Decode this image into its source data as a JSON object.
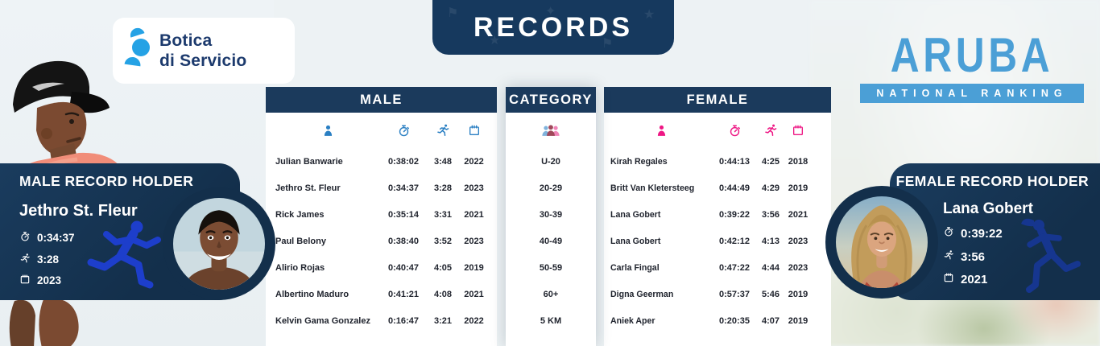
{
  "banner": {
    "title": "RECORDS"
  },
  "sponsor": {
    "line1": "Botica",
    "line2": "di Servicio"
  },
  "ranking": {
    "title": "ARUBA",
    "subtitle": "NATIONAL RANKING"
  },
  "colors": {
    "navy": "#16395e",
    "header_navy": "#1b3a5c",
    "card_navy": "#132f4b",
    "male_blue": "#2a7fc3",
    "female_pink": "#ee1784",
    "aruba_blue": "#4b9fd6",
    "page_bg": "#edf2f4",
    "silhouette_blue": "#1d3ecb",
    "silhouette_dark_blue": "#16368f"
  },
  "icons": [
    "athlete-icon",
    "stopwatch-icon",
    "runner-icon",
    "calendar-icon",
    "age-group-icon"
  ],
  "chart_data": {
    "type": "table",
    "title": "RECORDS",
    "sections": [
      "MALE",
      "CATEGORY",
      "FEMALE"
    ],
    "columns": [
      "athlete",
      "time",
      "pace",
      "year"
    ],
    "rows": [
      {
        "category": "U-20",
        "male": {
          "name": "Julian Banwarie",
          "time": "0:38:02",
          "pace": "3:48",
          "year": "2022"
        },
        "female": {
          "name": "Kirah Regales",
          "time": "0:44:13",
          "pace": "4:25",
          "year": "2018"
        }
      },
      {
        "category": "20-29",
        "male": {
          "name": "Jethro St. Fleur",
          "time": "0:34:37",
          "pace": "3:28",
          "year": "2023"
        },
        "female": {
          "name": "Britt Van Kletersteeg",
          "time": "0:44:49",
          "pace": "4:29",
          "year": "2019"
        }
      },
      {
        "category": "30-39",
        "male": {
          "name": "Rick James",
          "time": "0:35:14",
          "pace": "3:31",
          "year": "2021"
        },
        "female": {
          "name": "Lana Gobert",
          "time": "0:39:22",
          "pace": "3:56",
          "year": "2021"
        }
      },
      {
        "category": "40-49",
        "male": {
          "name": "Paul Belony",
          "time": "0:38:40",
          "pace": "3:52",
          "year": "2023"
        },
        "female": {
          "name": "Lana Gobert",
          "time": "0:42:12",
          "pace": "4:13",
          "year": "2023"
        }
      },
      {
        "category": "50-59",
        "male": {
          "name": "Alirio Rojas",
          "time": "0:40:47",
          "pace": "4:05",
          "year": "2019"
        },
        "female": {
          "name": "Carla Fingal",
          "time": "0:47:22",
          "pace": "4:44",
          "year": "2023"
        }
      },
      {
        "category": "60+",
        "male": {
          "name": "Albertino Maduro",
          "time": "0:41:21",
          "pace": "4:08",
          "year": "2021"
        },
        "female": {
          "name": "Digna Geerman",
          "time": "0:57:37",
          "pace": "5:46",
          "year": "2019"
        }
      },
      {
        "category": "5 KM",
        "male": {
          "name": "Kelvin Gama Gonzalez",
          "time": "0:16:47",
          "pace": "3:21",
          "year": "2022"
        },
        "female": {
          "name": "Aniek Aper",
          "time": "0:20:35",
          "pace": "4:07",
          "year": "2019"
        }
      }
    ]
  },
  "table_headers": {
    "male": "MALE",
    "category": "CATEGORY",
    "female": "FEMALE"
  },
  "male_record": {
    "title": "MALE RECORD HOLDER",
    "name": "Jethro St. Fleur",
    "time": "0:34:37",
    "pace": "3:28",
    "year": "2023"
  },
  "female_record": {
    "title": "FEMALE RECORD HOLDER",
    "name": "Lana Gobert",
    "time": "0:39:22",
    "pace": "3:56",
    "year": "2021"
  }
}
